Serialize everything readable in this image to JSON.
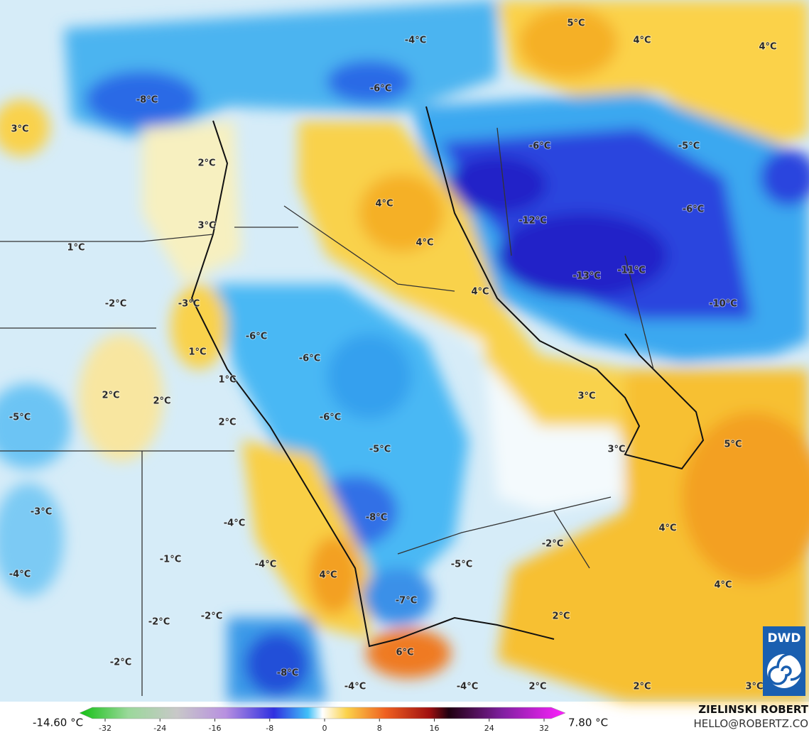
{
  "map": {
    "labels": [
      "5°C",
      "4°C",
      "4°C",
      "-4°C",
      "-8°C",
      "-6°C",
      "3°C",
      "-6°C",
      "-5°C",
      "2°C",
      "4°C",
      "-6°C",
      "-12°C",
      "3°C",
      "4°C",
      "1°C",
      "-13°C",
      "-11°C",
      "4°C",
      "-2°C",
      "-3°C",
      "-10°C",
      "-6°C",
      "1°C",
      "-6°C",
      "1°C",
      "2°C",
      "2°C",
      "3°C",
      "-5°C",
      "-6°C",
      "2°C",
      "-5°C",
      "3°C",
      "5°C",
      "-3°C",
      "-4°C",
      "-8°C",
      "4°C",
      "-2°C",
      "-1°C",
      "-4°C",
      "-5°C",
      "-4°C",
      "4°C",
      "4°C",
      "-7°C",
      "-2°C",
      "2°C",
      "-2°C",
      "6°C",
      "-2°C",
      "-8°C",
      "-4°C",
      "-4°C",
      "2°C",
      "2°C",
      "3°C"
    ]
  },
  "colorbar": {
    "min_label": "-14.60 °C",
    "max_label": "7.80 °C",
    "ticks": [
      -32,
      -24,
      -16,
      -8,
      0,
      8,
      16,
      24,
      32
    ]
  },
  "credits": {
    "author": "ZIELINSKI ROBERT",
    "contact": "HELLO@ROBERTZ.CO",
    "logo": "DWD"
  }
}
